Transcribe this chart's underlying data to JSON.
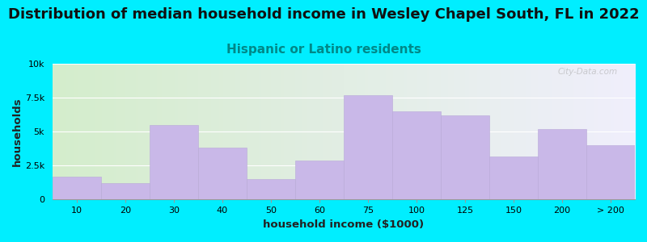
{
  "title": "Distribution of median household income in Wesley Chapel South, FL in 2022",
  "subtitle": "Hispanic or Latino residents",
  "xlabel": "household income ($1000)",
  "ylabel": "households",
  "bar_labels": [
    "10",
    "20",
    "30",
    "40",
    "50",
    "60",
    "75",
    "100",
    "125",
    "150",
    "200",
    "> 200"
  ],
  "bar_values": [
    1700,
    1200,
    5500,
    3800,
    1500,
    2900,
    7700,
    6500,
    6200,
    3200,
    5200,
    4000
  ],
  "bar_color": "#c9b8e8",
  "bar_edgecolor": "#b8a8d8",
  "background_color": "#00eeff",
  "plot_bg_gradient_left": "#d4edcc",
  "plot_bg_gradient_right": "#f0effc",
  "ylim": [
    0,
    10000
  ],
  "yticks": [
    0,
    2500,
    5000,
    7500,
    10000
  ],
  "ytick_labels": [
    "0",
    "2.5k",
    "5k",
    "7.5k",
    "10k"
  ],
  "title_fontsize": 13,
  "subtitle_fontsize": 11,
  "subtitle_color": "#008888",
  "watermark": "City-Data.com",
  "title_color": "#111111"
}
